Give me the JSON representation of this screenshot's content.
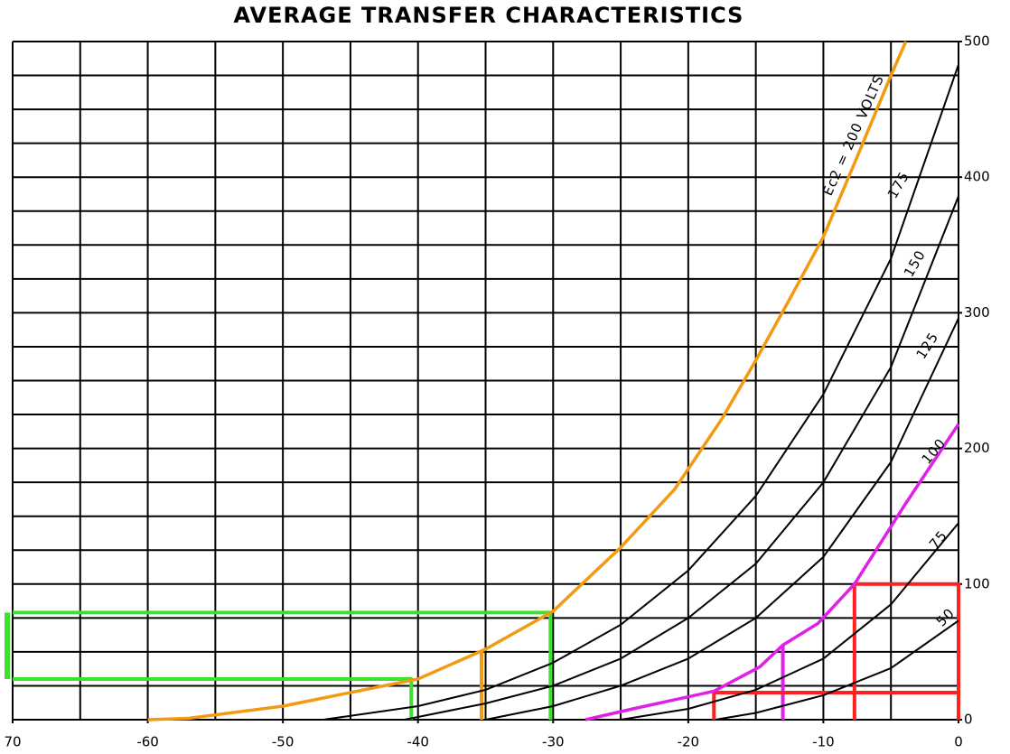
{
  "chart_data": {
    "type": "line",
    "title": "AVERAGE TRANSFER CHARACTERISTICS",
    "xlim": [
      -70,
      0
    ],
    "ylim": [
      0,
      500
    ],
    "xticks": [
      {
        "value": -70,
        "label": "70"
      },
      -60,
      -50,
      -40,
      -30,
      -20,
      -10,
      0
    ],
    "yticks": [
      0,
      100,
      200,
      300,
      400,
      500
    ],
    "grid": true,
    "grid_step": [
      5,
      25
    ],
    "series": [
      {
        "name": "Ec2 = 200 VOLTS",
        "color": "#f29a10",
        "x": [
          -60,
          -57,
          -50,
          -45,
          -40,
          -35,
          -30,
          -25,
          -21,
          -17.5,
          -15,
          -12.5,
          -10,
          -7.5,
          -5,
          -3.9
        ],
        "values": [
          0,
          1,
          10,
          20,
          30,
          52,
          80,
          127,
          170,
          222,
          265,
          310,
          356,
          415,
          475,
          500
        ]
      },
      {
        "name": "175",
        "color": "#000000",
        "x": [
          -47,
          -40,
          -35,
          -30,
          -25,
          -20,
          -15,
          -10,
          -5,
          0
        ],
        "values": [
          0,
          10,
          22,
          42,
          70,
          110,
          165,
          240,
          340,
          483
        ]
      },
      {
        "name": "150",
        "color": "#000000",
        "x": [
          -41,
          -35,
          -30,
          -25,
          -20,
          -15,
          -10,
          -5,
          0
        ],
        "values": [
          0,
          12,
          25,
          45,
          75,
          115,
          175,
          260,
          386
        ]
      },
      {
        "name": "125",
        "color": "#000000",
        "x": [
          -35,
          -30,
          -25,
          -20,
          -15,
          -10,
          -5,
          0
        ],
        "values": [
          0,
          10,
          25,
          45,
          75,
          120,
          190,
          296
        ]
      },
      {
        "name": "100",
        "color": "#e020e8",
        "x": [
          -27.6,
          -24.1,
          -18.1,
          -14.7,
          -13,
          -10.4,
          -7.7,
          -4,
          0
        ],
        "values": [
          0,
          8,
          21,
          39,
          55,
          71,
          100,
          158,
          218
        ]
      },
      {
        "name": "75",
        "color": "#000000",
        "x": [
          -25,
          -20,
          -15,
          -10,
          -5,
          0
        ],
        "values": [
          0,
          8,
          22,
          45,
          85,
          145
        ]
      },
      {
        "name": "50",
        "color": "#000000",
        "x": [
          -18,
          -15,
          -10,
          -5,
          0
        ],
        "values": [
          0,
          5,
          18,
          38,
          73
        ]
      }
    ],
    "guides": [
      {
        "color": "#3ee030",
        "x": [
          -70,
          -30.2,
          -30.2
        ],
        "values": [
          79,
          79,
          0
        ]
      },
      {
        "color": "#3ee030",
        "x": [
          -70,
          -40.5,
          -40.5
        ],
        "values": [
          30,
          30,
          0
        ]
      },
      {
        "color": "#f29a10",
        "x": [
          -35.3,
          -35.3
        ],
        "values": [
          50,
          0
        ]
      },
      {
        "color": "#e020e8",
        "x": [
          -13,
          -13
        ],
        "values": [
          55,
          0
        ]
      },
      {
        "color": "#ff2020",
        "x": [
          -18.1,
          -18.1,
          0
        ],
        "values": [
          0,
          20,
          20
        ]
      },
      {
        "color": "#ff2020",
        "x": [
          -7.7,
          -7.7,
          0,
          0
        ],
        "values": [
          0,
          100,
          100,
          0
        ]
      }
    ]
  }
}
